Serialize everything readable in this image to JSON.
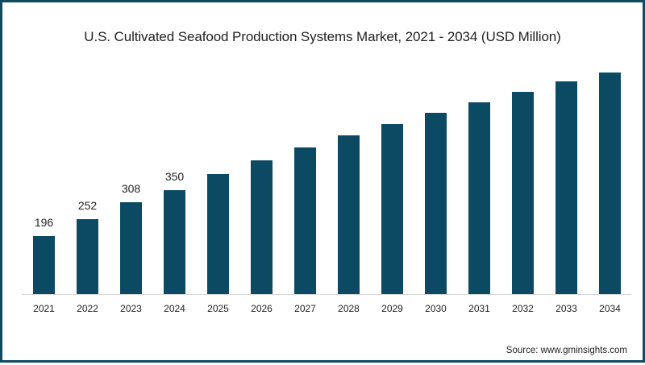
{
  "colors": {
    "bar": "#0b4a62",
    "border": "#0e4a62"
  },
  "source": "Source: www.gminsights.com",
  "chart_data": {
    "type": "bar",
    "title": "U.S. Cultivated Seafood Production Systems Market, 2021 - 2034 (USD Million)",
    "xlabel": "",
    "ylabel": "USD Million",
    "categories": [
      "2021",
      "2022",
      "2023",
      "2024",
      "2025",
      "2026",
      "2027",
      "2028",
      "2029",
      "2030",
      "2031",
      "2032",
      "2033",
      "2034"
    ],
    "values": [
      196,
      252,
      308,
      350,
      402,
      448,
      491,
      532,
      570,
      608,
      643,
      678,
      713,
      743
    ],
    "data_labels": [
      "196",
      "252",
      "308",
      "350",
      "",
      "",
      "",
      "",
      "",
      "",
      "",
      "",
      "",
      ""
    ],
    "ylim": [
      0,
      800
    ],
    "grid": false,
    "legend": null
  }
}
